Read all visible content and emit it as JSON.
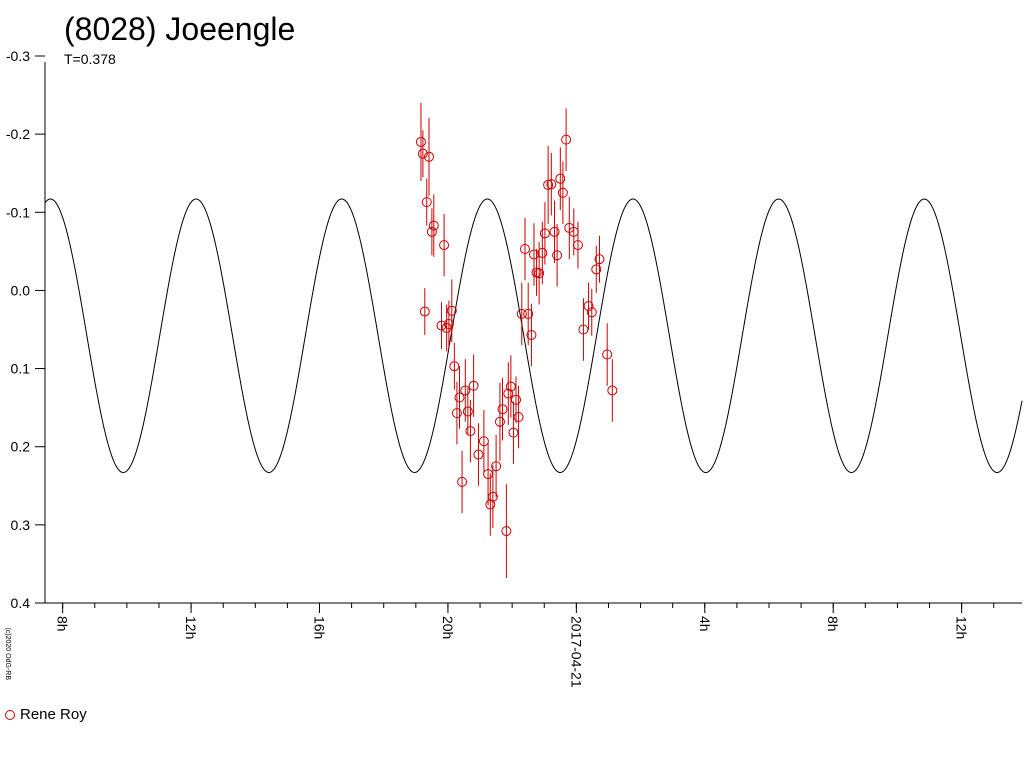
{
  "chart_data": {
    "type": "scatter",
    "title": "(8028) Joeengle",
    "subtitle": "T=0.378",
    "copyright": "(c)2020 OdG-RB",
    "xlabel": "",
    "ylabel": "",
    "ylim": [
      -0.3,
      0.4
    ],
    "y_inverted": true,
    "x_unit": "hours",
    "xlim": [
      7.45,
      37.88
    ],
    "x_ticks": [
      {
        "x": 8,
        "label": "8h"
      },
      {
        "x": 12,
        "label": "12h"
      },
      {
        "x": 16,
        "label": "16h"
      },
      {
        "x": 20,
        "label": "20h"
      },
      {
        "x": 24,
        "label": "2017-04-21"
      },
      {
        "x": 28,
        "label": "4h"
      },
      {
        "x": 32,
        "label": "8h"
      },
      {
        "x": 36,
        "label": "12h"
      }
    ],
    "y_ticks": [
      {
        "y": -0.3,
        "label": "-0.3"
      },
      {
        "y": -0.2,
        "label": "-0.2"
      },
      {
        "y": -0.1,
        "label": "-0.1"
      },
      {
        "y": 0.0,
        "label": "0.0"
      },
      {
        "y": 0.1,
        "label": "0.1"
      },
      {
        "y": 0.2,
        "label": "0.2"
      },
      {
        "y": 0.3,
        "label": "0.3"
      },
      {
        "y": 0.4,
        "label": "0.4"
      }
    ],
    "grid": false,
    "legend_position": "bottom-left",
    "fit_curve": {
      "period_hours": 4.536,
      "amplitude": 0.175,
      "mean": 0.058,
      "min_time": 18.96,
      "color": "#000000"
    },
    "series": [
      {
        "name": "Rene Roy",
        "color": "#cc0000",
        "marker": "open-circle",
        "points": [
          {
            "x": 19.16,
            "y": -0.19,
            "err": 0.05
          },
          {
            "x": 19.22,
            "y": -0.175,
            "err": 0.03
          },
          {
            "x": 19.28,
            "y": 0.027,
            "err": 0.03
          },
          {
            "x": 19.34,
            "y": -0.113,
            "err": 0.03
          },
          {
            "x": 19.41,
            "y": -0.171,
            "err": 0.05
          },
          {
            "x": 19.5,
            "y": -0.075,
            "err": 0.03
          },
          {
            "x": 19.56,
            "y": -0.083,
            "err": 0.04
          },
          {
            "x": 19.8,
            "y": 0.045,
            "err": 0.03
          },
          {
            "x": 19.88,
            "y": -0.058,
            "err": 0.04
          },
          {
            "x": 19.96,
            "y": 0.048,
            "err": 0.03
          },
          {
            "x": 20.03,
            "y": 0.043,
            "err": 0.03
          },
          {
            "x": 20.12,
            "y": 0.026,
            "err": 0.04
          },
          {
            "x": 20.2,
            "y": 0.097,
            "err": 0.03
          },
          {
            "x": 20.28,
            "y": 0.157,
            "err": 0.04
          },
          {
            "x": 20.36,
            "y": 0.137,
            "err": 0.04
          },
          {
            "x": 20.44,
            "y": 0.245,
            "err": 0.04
          },
          {
            "x": 20.54,
            "y": 0.128,
            "err": 0.04
          },
          {
            "x": 20.62,
            "y": 0.155,
            "err": 0.03
          },
          {
            "x": 20.7,
            "y": 0.18,
            "err": 0.04
          },
          {
            "x": 20.8,
            "y": 0.122,
            "err": 0.04
          },
          {
            "x": 20.95,
            "y": 0.21,
            "err": 0.04
          },
          {
            "x": 21.12,
            "y": 0.193,
            "err": 0.04
          },
          {
            "x": 21.25,
            "y": 0.235,
            "err": 0.04
          },
          {
            "x": 21.32,
            "y": 0.274,
            "err": 0.04
          },
          {
            "x": 21.4,
            "y": 0.264,
            "err": 0.04
          },
          {
            "x": 21.5,
            "y": 0.225,
            "err": 0.04
          },
          {
            "x": 21.62,
            "y": 0.168,
            "err": 0.05
          },
          {
            "x": 21.7,
            "y": 0.152,
            "err": 0.04
          },
          {
            "x": 21.82,
            "y": 0.308,
            "err": 0.06
          },
          {
            "x": 21.88,
            "y": 0.132,
            "err": 0.04
          },
          {
            "x": 21.96,
            "y": 0.123,
            "err": 0.04
          },
          {
            "x": 22.04,
            "y": 0.182,
            "err": 0.04
          },
          {
            "x": 22.12,
            "y": 0.14,
            "err": 0.03
          },
          {
            "x": 22.2,
            "y": 0.162,
            "err": 0.04
          },
          {
            "x": 22.3,
            "y": 0.03,
            "err": 0.04
          },
          {
            "x": 22.4,
            "y": -0.053,
            "err": 0.04
          },
          {
            "x": 22.5,
            "y": 0.03,
            "err": 0.04
          },
          {
            "x": 22.6,
            "y": 0.057,
            "err": 0.04
          },
          {
            "x": 22.68,
            "y": -0.046,
            "err": 0.04
          },
          {
            "x": 22.76,
            "y": -0.023,
            "err": 0.03
          },
          {
            "x": 22.84,
            "y": -0.022,
            "err": 0.04
          },
          {
            "x": 22.94,
            "y": -0.048,
            "err": 0.04
          },
          {
            "x": 23.02,
            "y": -0.073,
            "err": 0.04
          },
          {
            "x": 23.12,
            "y": -0.135,
            "err": 0.05
          },
          {
            "x": 23.22,
            "y": -0.136,
            "err": 0.04
          },
          {
            "x": 23.32,
            "y": -0.075,
            "err": 0.04
          },
          {
            "x": 23.4,
            "y": -0.045,
            "err": 0.04
          },
          {
            "x": 23.5,
            "y": -0.143,
            "err": 0.04
          },
          {
            "x": 23.58,
            "y": -0.125,
            "err": 0.04
          },
          {
            "x": 23.68,
            "y": -0.193,
            "err": 0.04
          },
          {
            "x": 23.78,
            "y": -0.08,
            "err": 0.04
          },
          {
            "x": 23.92,
            "y": -0.075,
            "err": 0.03
          },
          {
            "x": 24.05,
            "y": -0.058,
            "err": 0.03
          },
          {
            "x": 24.22,
            "y": 0.05,
            "err": 0.04
          },
          {
            "x": 24.38,
            "y": 0.02,
            "err": 0.03
          },
          {
            "x": 24.48,
            "y": 0.028,
            "err": 0.03
          },
          {
            "x": 24.62,
            "y": -0.027,
            "err": 0.03
          },
          {
            "x": 24.72,
            "y": -0.04,
            "err": 0.03
          },
          {
            "x": 24.96,
            "y": 0.082,
            "err": 0.04
          },
          {
            "x": 25.12,
            "y": 0.128,
            "err": 0.04
          }
        ]
      }
    ]
  }
}
